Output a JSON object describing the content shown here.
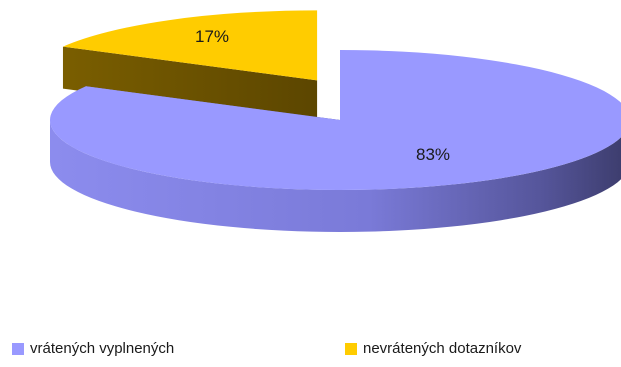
{
  "chart_data": {
    "type": "pie",
    "title": "",
    "slices": [
      {
        "name": "vrátených vyplnených",
        "value": 83,
        "label": "83%",
        "color": "#9999ff",
        "exploded": false
      },
      {
        "name": "nevrátených dotazníkov",
        "value": 17,
        "label": "17%",
        "color": "#ffcc00",
        "exploded": true
      }
    ],
    "style": "3d-exploded",
    "legend": "bottom"
  }
}
